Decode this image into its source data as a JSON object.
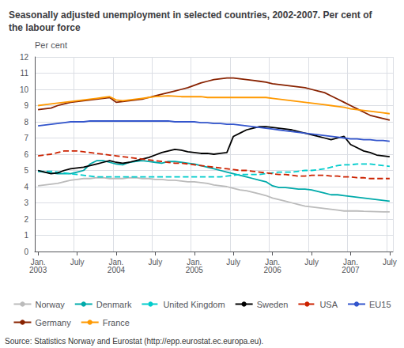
{
  "chart_data": {
    "type": "line",
    "title": "Seasonally adjusted unemployment in selected countries, 2002-2007. Per cent of\nthe labour force",
    "ylabel": "Per cent",
    "annotations": [
      "Source: Statistics Norway and Eurostat (http://epp.eurostat.ec.europa.eu)."
    ],
    "categories": [
      "Jan.\n2003",
      null,
      null,
      null,
      null,
      null,
      "July",
      null,
      null,
      null,
      null,
      null,
      "Jan.\n2004",
      null,
      null,
      null,
      null,
      null,
      "July",
      null,
      null,
      null,
      null,
      null,
      "Jan.\n2005",
      null,
      null,
      null,
      null,
      null,
      "July",
      null,
      null,
      null,
      null,
      null,
      "Jan.\n2006",
      null,
      null,
      null,
      null,
      null,
      "July",
      null,
      null,
      null,
      null,
      null,
      "Jan.\n2007",
      null,
      null,
      null,
      null,
      null,
      "July"
    ],
    "ylim": [
      0,
      12
    ],
    "yticks": [
      0,
      1,
      2,
      3,
      4,
      5,
      6,
      7,
      8,
      9,
      10,
      11,
      12
    ],
    "grid": true,
    "legend": "bottom",
    "series": [
      {
        "name": "Norway",
        "color": "#bbbbbb",
        "line_style": "solid",
        "values": [
          4.05,
          4.1,
          4.15,
          4.2,
          4.3,
          4.4,
          4.45,
          4.5,
          4.5,
          4.55,
          4.55,
          4.5,
          4.5,
          4.5,
          4.55,
          4.55,
          4.5,
          4.5,
          4.45,
          4.45,
          4.4,
          4.4,
          4.35,
          4.3,
          4.3,
          4.25,
          4.2,
          4.1,
          4.05,
          4.0,
          3.9,
          3.8,
          3.75,
          3.65,
          3.55,
          3.45,
          3.3,
          3.2,
          3.1,
          3.0,
          2.9,
          2.8,
          2.75,
          2.7,
          2.65,
          2.6,
          2.55,
          2.5,
          2.5,
          2.5,
          2.48,
          2.47,
          2.46,
          2.45,
          2.45
        ]
      },
      {
        "name": "Denmark",
        "color": "#00aaaa",
        "line_style": "solid",
        "values": [
          4.95,
          4.9,
          4.85,
          4.8,
          4.8,
          4.8,
          4.9,
          5.0,
          5.4,
          5.6,
          5.6,
          5.5,
          5.4,
          5.35,
          5.5,
          5.55,
          5.6,
          5.55,
          5.5,
          5.45,
          5.55,
          5.55,
          5.5,
          5.45,
          5.4,
          5.3,
          5.2,
          5.1,
          5.0,
          4.9,
          4.8,
          4.7,
          4.6,
          4.5,
          4.4,
          4.3,
          4.05,
          3.95,
          3.95,
          3.9,
          3.85,
          3.85,
          3.8,
          3.7,
          3.6,
          3.5,
          3.5,
          3.45,
          3.4,
          3.35,
          3.3,
          3.25,
          3.2,
          3.15,
          3.1
        ]
      },
      {
        "name": "United Kingdom",
        "color": "#00cccc",
        "line_style": "dashed",
        "values": [
          4.95,
          4.95,
          4.95,
          4.9,
          4.85,
          4.8,
          4.75,
          4.7,
          4.65,
          4.6,
          4.6,
          4.6,
          4.6,
          4.6,
          4.6,
          4.6,
          4.6,
          4.6,
          4.6,
          4.6,
          4.6,
          4.6,
          4.6,
          4.6,
          4.6,
          4.6,
          4.6,
          4.6,
          4.6,
          4.65,
          4.7,
          4.75,
          4.75,
          4.75,
          4.75,
          4.8,
          4.85,
          4.9,
          4.9,
          4.9,
          4.95,
          5.0,
          5.0,
          5.05,
          5.1,
          5.2,
          5.3,
          5.35,
          5.35,
          5.4,
          5.4,
          5.4,
          5.35,
          5.3,
          5.25
        ]
      },
      {
        "name": "Sweden",
        "color": "#000000",
        "line_style": "solid",
        "values": [
          5.0,
          4.9,
          4.8,
          4.85,
          5.0,
          5.1,
          5.15,
          5.2,
          5.3,
          5.4,
          5.5,
          5.6,
          5.5,
          5.45,
          5.5,
          5.6,
          5.7,
          5.8,
          5.95,
          6.1,
          6.2,
          6.3,
          6.25,
          6.15,
          6.1,
          6.05,
          6.05,
          6.0,
          6.05,
          6.1,
          7.1,
          7.3,
          7.5,
          7.6,
          7.7,
          7.7,
          7.65,
          7.6,
          7.55,
          7.5,
          7.4,
          7.3,
          7.2,
          7.1,
          7.0,
          6.9,
          7.0,
          7.1,
          6.6,
          6.4,
          6.2,
          6.1,
          5.95,
          5.9,
          5.85
        ]
      },
      {
        "name": "USA",
        "color": "#cc2200",
        "line_style": "dashed",
        "values": [
          5.9,
          5.95,
          6.0,
          6.1,
          6.2,
          6.2,
          6.2,
          6.15,
          6.1,
          6.05,
          6.0,
          5.95,
          5.9,
          5.85,
          5.8,
          5.75,
          5.7,
          5.65,
          5.6,
          5.55,
          5.5,
          5.45,
          5.45,
          5.4,
          5.35,
          5.3,
          5.25,
          5.2,
          5.15,
          5.1,
          5.05,
          5.0,
          5.0,
          4.95,
          4.9,
          4.85,
          4.8,
          4.75,
          4.75,
          4.7,
          4.65,
          4.65,
          4.7,
          4.7,
          4.7,
          4.65,
          4.65,
          4.6,
          4.6,
          4.55,
          4.55,
          4.5,
          4.5,
          4.5,
          4.5
        ]
      },
      {
        "name": "EU15",
        "color": "#3355cc",
        "line_style": "solid",
        "values": [
          7.75,
          7.8,
          7.85,
          7.9,
          7.95,
          8.0,
          8.0,
          8.0,
          8.05,
          8.05,
          8.05,
          8.05,
          8.05,
          8.05,
          8.05,
          8.05,
          8.05,
          8.05,
          8.05,
          8.05,
          8.05,
          8.0,
          8.0,
          8.0,
          8.0,
          7.95,
          7.95,
          7.9,
          7.9,
          7.85,
          7.85,
          7.8,
          7.75,
          7.7,
          7.65,
          7.6,
          7.55,
          7.5,
          7.45,
          7.4,
          7.35,
          7.3,
          7.25,
          7.2,
          7.15,
          7.1,
          7.05,
          7.0,
          6.95,
          6.95,
          6.9,
          6.9,
          6.85,
          6.85,
          6.8
        ]
      },
      {
        "name": "Germany",
        "color": "#882200",
        "line_style": "solid",
        "values": [
          8.75,
          8.8,
          8.85,
          9.0,
          9.1,
          9.2,
          9.25,
          9.3,
          9.35,
          9.4,
          9.45,
          9.5,
          9.2,
          9.25,
          9.3,
          9.35,
          9.4,
          9.5,
          9.6,
          9.7,
          9.8,
          9.9,
          10.0,
          10.1,
          10.25,
          10.4,
          10.5,
          10.6,
          10.65,
          10.7,
          10.7,
          10.65,
          10.6,
          10.55,
          10.5,
          10.45,
          10.35,
          10.3,
          10.25,
          10.2,
          10.15,
          10.1,
          10.0,
          9.9,
          9.8,
          9.6,
          9.4,
          9.2,
          9.0,
          8.8,
          8.6,
          8.4,
          8.3,
          8.2,
          8.1
        ]
      },
      {
        "name": "France",
        "color": "#ff9900",
        "line_style": "solid",
        "values": [
          9.0,
          9.05,
          9.1,
          9.15,
          9.2,
          9.25,
          9.3,
          9.35,
          9.4,
          9.45,
          9.5,
          9.55,
          9.35,
          9.3,
          9.35,
          9.4,
          9.45,
          9.5,
          9.55,
          9.58,
          9.6,
          9.58,
          9.55,
          9.55,
          9.55,
          9.55,
          9.5,
          9.5,
          9.5,
          9.5,
          9.5,
          9.5,
          9.5,
          9.5,
          9.5,
          9.5,
          9.45,
          9.4,
          9.35,
          9.3,
          9.25,
          9.2,
          9.15,
          9.1,
          9.05,
          9.0,
          8.95,
          8.9,
          8.8,
          8.75,
          8.7,
          8.65,
          8.6,
          8.55,
          8.5
        ]
      }
    ]
  }
}
